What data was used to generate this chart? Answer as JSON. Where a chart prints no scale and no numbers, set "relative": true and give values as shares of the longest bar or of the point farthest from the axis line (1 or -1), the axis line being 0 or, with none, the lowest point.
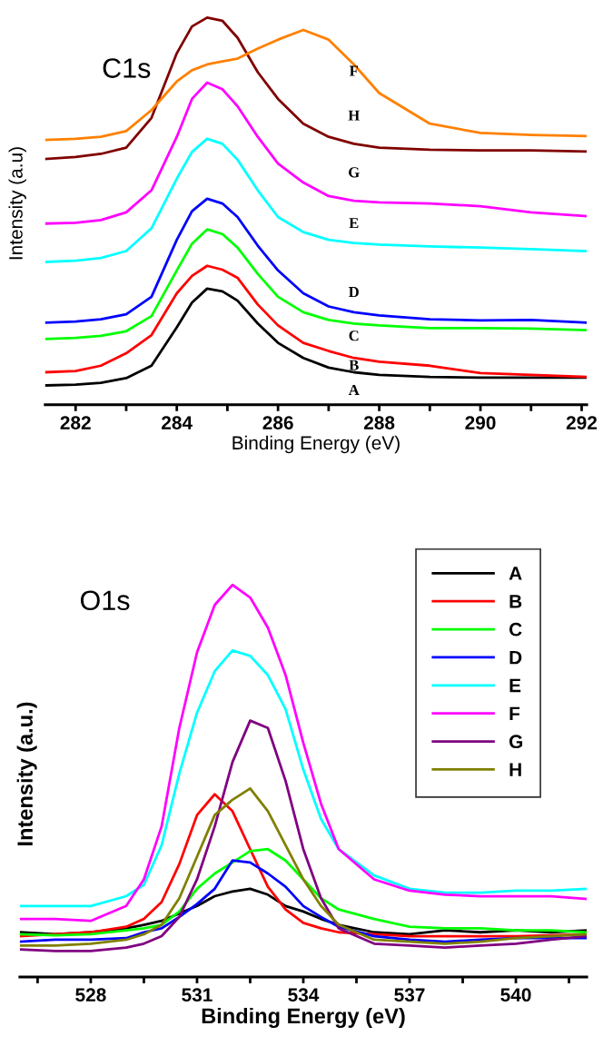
{
  "chart_data": [
    {
      "type": "line",
      "relative": true,
      "xlabel": "Binding Energy (eV)",
      "ylabel": "Intensity (a.u)",
      "xlim": [
        281.4,
        292.1
      ],
      "xticks": [
        282,
        {
          "value": 283,
          "label": null
        },
        284,
        {
          "value": 285,
          "label": null
        },
        286,
        {
          "value": 287,
          "label": null
        },
        288,
        {
          "value": 289,
          "label": null
        },
        290,
        {
          "value": 291,
          "label": null
        },
        292
      ],
      "tick_labels": "x",
      "grid": false,
      "legend": false,
      "marker": "none",
      "line_style": "solid",
      "x": [
        281.4,
        282,
        282.5,
        283,
        283.5,
        284,
        284.3,
        284.6,
        284.9,
        285.2,
        285.6,
        286,
        286.5,
        287,
        287.5,
        288,
        289,
        290,
        291,
        292.1
      ],
      "series": [
        {
          "name": "A",
          "color": "#000000",
          "values": [
            0.05,
            0.052,
            0.057,
            0.069,
            0.101,
            0.2,
            0.264,
            0.3,
            0.293,
            0.269,
            0.21,
            0.16,
            0.121,
            0.096,
            0.084,
            0.077,
            0.072,
            0.07,
            0.07,
            0.07
          ]
        },
        {
          "name": "B",
          "color": "#ff0000",
          "values": [
            0.084,
            0.087,
            0.101,
            0.133,
            0.18,
            0.288,
            0.333,
            0.359,
            0.349,
            0.328,
            0.259,
            0.205,
            0.16,
            0.139,
            0.121,
            0.111,
            0.101,
            0.082,
            0.077,
            0.072
          ]
        },
        {
          "name": "C",
          "color": "#00ff00",
          "values": [
            0.17,
            0.173,
            0.178,
            0.19,
            0.229,
            0.347,
            0.416,
            0.453,
            0.441,
            0.406,
            0.338,
            0.279,
            0.239,
            0.219,
            0.21,
            0.205,
            0.198,
            0.198,
            0.197,
            0.193
          ]
        },
        {
          "name": "D",
          "color": "#0000ff",
          "values": [
            0.212,
            0.215,
            0.221,
            0.234,
            0.279,
            0.426,
            0.5,
            0.532,
            0.52,
            0.485,
            0.411,
            0.347,
            0.288,
            0.254,
            0.239,
            0.231,
            0.221,
            0.218,
            0.219,
            0.212
          ]
        },
        {
          "name": "E",
          "color": "#00ffff",
          "values": [
            0.369,
            0.372,
            0.379,
            0.397,
            0.456,
            0.584,
            0.653,
            0.687,
            0.674,
            0.633,
            0.554,
            0.485,
            0.446,
            0.426,
            0.418,
            0.414,
            0.409,
            0.406,
            0.402,
            0.397
          ]
        },
        {
          "name": "G",
          "color": "#ff00ff",
          "values": [
            0.468,
            0.47,
            0.477,
            0.497,
            0.554,
            0.692,
            0.79,
            0.832,
            0.815,
            0.771,
            0.692,
            0.623,
            0.574,
            0.539,
            0.527,
            0.523,
            0.52,
            0.513,
            0.497,
            0.487
          ]
        },
        {
          "name": "H",
          "color": "#800000",
          "values": [
            0.635,
            0.64,
            0.648,
            0.664,
            0.741,
            0.908,
            0.977,
            1.0,
            0.992,
            0.948,
            0.859,
            0.79,
            0.726,
            0.692,
            0.674,
            0.664,
            0.659,
            0.657,
            0.657,
            0.654
          ]
        },
        {
          "name": "F",
          "color": "#ff8000",
          "values": [
            0.684,
            0.687,
            0.692,
            0.707,
            0.761,
            0.835,
            0.864,
            0.879,
            0.887,
            0.894,
            0.92,
            0.943,
            0.968,
            0.943,
            0.879,
            0.805,
            0.726,
            0.702,
            0.697,
            0.694
          ]
        }
      ],
      "annotations": [
        "C1s"
      ]
    },
    {
      "type": "line",
      "relative": true,
      "xlabel": "Binding Energy (eV)",
      "ylabel": "Intensity (a.u.)",
      "xlim": [
        526,
        542
      ],
      "xticks": [
        {
          "value": 526.5,
          "label": null
        },
        528,
        {
          "value": 529.5,
          "label": null
        },
        531,
        {
          "value": 532.5,
          "label": null
        },
        534,
        {
          "value": 535.5,
          "label": null
        },
        537,
        {
          "value": 538.5,
          "label": null
        },
        540,
        {
          "value": 541.5,
          "label": null
        }
      ],
      "tick_labels": "x",
      "grid": false,
      "legend": "top right",
      "marker": "none",
      "line_style": "solid",
      "x": [
        526,
        527,
        528,
        529,
        529.5,
        530,
        530.5,
        531,
        531.5,
        532,
        532.5,
        533,
        533.5,
        534,
        534.5,
        535,
        536,
        537,
        538,
        539,
        540,
        541,
        542
      ],
      "series": [
        {
          "name": "A",
          "color": "#000000",
          "values": [
            0.114,
            0.109,
            0.114,
            0.124,
            0.133,
            0.143,
            0.162,
            0.181,
            0.206,
            0.218,
            0.225,
            0.21,
            0.181,
            0.167,
            0.148,
            0.133,
            0.114,
            0.109,
            0.119,
            0.114,
            0.119,
            0.114,
            0.119
          ]
        },
        {
          "name": "B",
          "color": "#ff0000",
          "values": [
            0.104,
            0.109,
            0.114,
            0.128,
            0.148,
            0.191,
            0.288,
            0.413,
            0.466,
            0.423,
            0.326,
            0.23,
            0.172,
            0.138,
            0.124,
            0.114,
            0.109,
            0.104,
            0.104,
            0.104,
            0.104,
            0.106,
            0.109
          ]
        },
        {
          "name": "C",
          "color": "#00ff00",
          "values": [
            0.109,
            0.106,
            0.109,
            0.119,
            0.124,
            0.133,
            0.167,
            0.225,
            0.264,
            0.292,
            0.321,
            0.326,
            0.297,
            0.249,
            0.201,
            0.172,
            0.148,
            0.128,
            0.124,
            0.124,
            0.119,
            0.119,
            0.114
          ]
        },
        {
          "name": "D",
          "color": "#0000ff",
          "values": [
            0.09,
            0.095,
            0.095,
            0.099,
            0.114,
            0.124,
            0.153,
            0.186,
            0.225,
            0.297,
            0.292,
            0.264,
            0.23,
            0.181,
            0.153,
            0.128,
            0.104,
            0.095,
            0.09,
            0.095,
            0.099,
            0.099,
            0.099
          ]
        },
        {
          "name": "E",
          "color": "#00ffff",
          "values": [
            0.181,
            0.181,
            0.181,
            0.206,
            0.235,
            0.336,
            0.519,
            0.674,
            0.78,
            0.833,
            0.819,
            0.77,
            0.683,
            0.529,
            0.403,
            0.326,
            0.259,
            0.225,
            0.215,
            0.215,
            0.22,
            0.22,
            0.225
          ]
        },
        {
          "name": "F",
          "color": "#ff00ff",
          "values": [
            0.148,
            0.148,
            0.143,
            0.181,
            0.249,
            0.384,
            0.635,
            0.828,
            0.949,
            1.0,
            0.968,
            0.891,
            0.77,
            0.597,
            0.442,
            0.326,
            0.249,
            0.22,
            0.21,
            0.206,
            0.206,
            0.206,
            0.199
          ]
        },
        {
          "name": "G",
          "color": "#800080",
          "values": [
            0.07,
            0.066,
            0.066,
            0.075,
            0.085,
            0.104,
            0.153,
            0.249,
            0.384,
            0.548,
            0.654,
            0.635,
            0.5,
            0.326,
            0.201,
            0.124,
            0.085,
            0.08,
            0.075,
            0.08,
            0.085,
            0.095,
            0.104
          ]
        },
        {
          "name": "H",
          "color": "#808000",
          "values": [
            0.08,
            0.08,
            0.085,
            0.095,
            0.109,
            0.133,
            0.201,
            0.307,
            0.413,
            0.452,
            0.481,
            0.423,
            0.336,
            0.249,
            0.181,
            0.133,
            0.095,
            0.09,
            0.085,
            0.09,
            0.099,
            0.104,
            0.109
          ]
        }
      ],
      "annotations": [
        "O1s"
      ]
    }
  ]
}
